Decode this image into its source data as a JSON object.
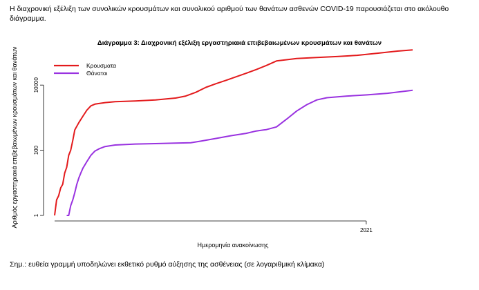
{
  "intro_text": "Η διαχρονική εξέλιξη των συνολικών κρουσμάτων και συνολικού αριθμού των θανάτων ασθενών COVID-19 παρουσιάζεται στο ακόλουθο διάγραμμα.",
  "footnote": "Σημ.: ευθεία γραμμή υποδηλώνει εκθετικό ρυθμό αύξησης της ασθένειας (σε λογαριθμική κλίμακα)",
  "chart_data": {
    "type": "line",
    "title": "Διάγραμμα 3: Διαχρονική εξέλιξη εργαστηριακά επιβεβαιωμένων κρουσμάτων και θανάτων",
    "xlabel": "Ημερομηνία ανακοίνωσης",
    "ylabel": "Αριθμός εργαστηριακά επιβεβαιωμένων κρουσμάτων και θανάτων",
    "x_unit": "days since 2020-02-26",
    "xlim": [
      0,
      355
    ],
    "x_ticks": [
      {
        "x": 309,
        "label": "2021"
      }
    ],
    "y_scale": "log10",
    "ylim": [
      0.7,
      70000
    ],
    "y_ticks": [
      {
        "value": 1,
        "label": "1"
      },
      {
        "value": 100,
        "label": "100"
      },
      {
        "value": 10000,
        "label": "10000"
      }
    ],
    "legend_position": "top-left",
    "series": [
      {
        "name": "Κρουσματα",
        "color": "#e31a1c",
        "points": [
          [
            0,
            1
          ],
          [
            2,
            3
          ],
          [
            4,
            4
          ],
          [
            6,
            7
          ],
          [
            8,
            9
          ],
          [
            10,
            20
          ],
          [
            12,
            30
          ],
          [
            14,
            70
          ],
          [
            16,
            100
          ],
          [
            18,
            200
          ],
          [
            20,
            420
          ],
          [
            24,
            700
          ],
          [
            28,
            1100
          ],
          [
            32,
            1700
          ],
          [
            36,
            2300
          ],
          [
            40,
            2600
          ],
          [
            50,
            2900
          ],
          [
            60,
            3100
          ],
          [
            80,
            3250
          ],
          [
            100,
            3500
          ],
          [
            120,
            4000
          ],
          [
            130,
            4600
          ],
          [
            140,
            6000
          ],
          [
            150,
            8500
          ],
          [
            160,
            11000
          ],
          [
            170,
            14000
          ],
          [
            180,
            18000
          ],
          [
            190,
            23000
          ],
          [
            200,
            30000
          ],
          [
            210,
            40000
          ],
          [
            220,
            55000
          ],
          [
            240,
            65000
          ],
          [
            260,
            70000
          ],
          [
            280,
            75000
          ],
          [
            300,
            82000
          ],
          [
            320,
            95000
          ],
          [
            340,
            110000
          ],
          [
            355,
            120000
          ]
        ]
      },
      {
        "name": "Θάνατοι",
        "color": "#9932e0",
        "points": [
          [
            12,
            1
          ],
          [
            14,
            1
          ],
          [
            16,
            2
          ],
          [
            18,
            3
          ],
          [
            20,
            5
          ],
          [
            22,
            9
          ],
          [
            24,
            14
          ],
          [
            26,
            20
          ],
          [
            28,
            28
          ],
          [
            32,
            45
          ],
          [
            36,
            70
          ],
          [
            40,
            95
          ],
          [
            44,
            110
          ],
          [
            50,
            130
          ],
          [
            60,
            145
          ],
          [
            80,
            155
          ],
          [
            100,
            160
          ],
          [
            120,
            165
          ],
          [
            135,
            170
          ],
          [
            145,
            190
          ],
          [
            160,
            230
          ],
          [
            175,
            280
          ],
          [
            190,
            330
          ],
          [
            200,
            390
          ],
          [
            210,
            430
          ],
          [
            220,
            520
          ],
          [
            230,
            900
          ],
          [
            240,
            1600
          ],
          [
            250,
            2500
          ],
          [
            260,
            3500
          ],
          [
            270,
            4100
          ],
          [
            290,
            4600
          ],
          [
            310,
            5000
          ],
          [
            330,
            5600
          ],
          [
            355,
            6900
          ]
        ]
      }
    ]
  }
}
